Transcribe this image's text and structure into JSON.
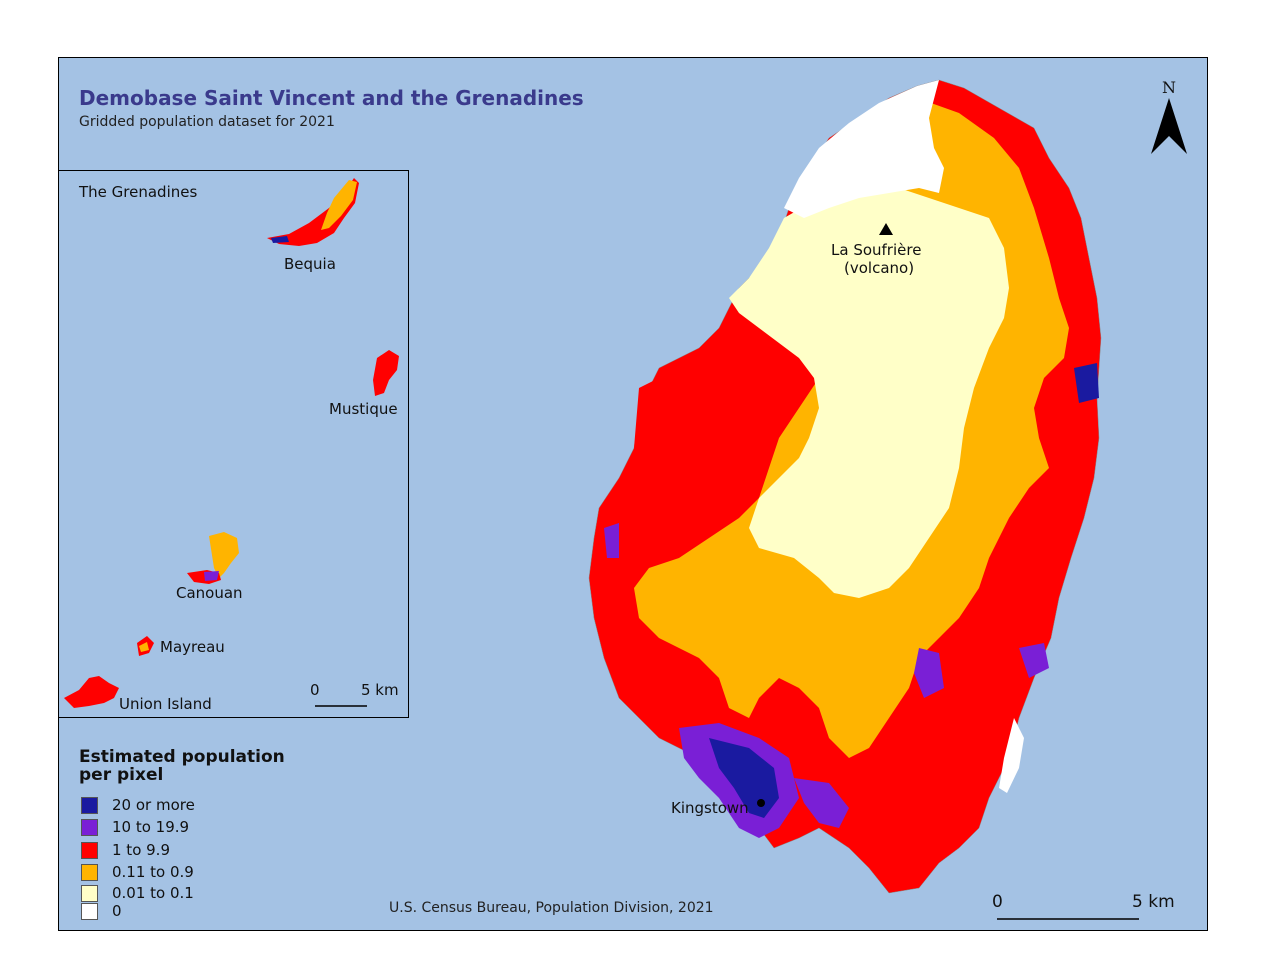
{
  "title": "Demobase Saint Vincent and the Grenadines",
  "subtitle": "Gridded population dataset for 2021",
  "inset": {
    "title": "The  Grenadines",
    "islands": {
      "bequia": "Bequia",
      "mustique": "Mustique",
      "canouan": "Canouan",
      "mayreau": "Mayreau",
      "union": "Union Island"
    },
    "scale": {
      "zero": "0",
      "end": "5 km"
    }
  },
  "main_map": {
    "volcano_label_1": "La Soufrière",
    "volcano_label_2": "(volcano)",
    "capital_label": "Kingstown",
    "scale": {
      "zero": "0",
      "end": "5 km"
    },
    "north": "N"
  },
  "legend": {
    "title_1": "Estimated population",
    "title_2": "per pixel",
    "items": [
      {
        "label": "20 or more",
        "color": "#1a1aa0"
      },
      {
        "label": "10 to 19.9",
        "color": "#7a1fd6"
      },
      {
        "label": "1 to 9.9",
        "color": "#ff0000"
      },
      {
        "label": "0.11 to 0.9",
        "color": "#ffb400"
      },
      {
        "label": "0.01 to 0.1",
        "color": "#ffffc8"
      },
      {
        "label": "0",
        "color": "#ffffff"
      }
    ]
  },
  "credit": "U.S. Census Bureau, Population Division, 2021",
  "colors": {
    "sea": "#a4c2e4"
  }
}
